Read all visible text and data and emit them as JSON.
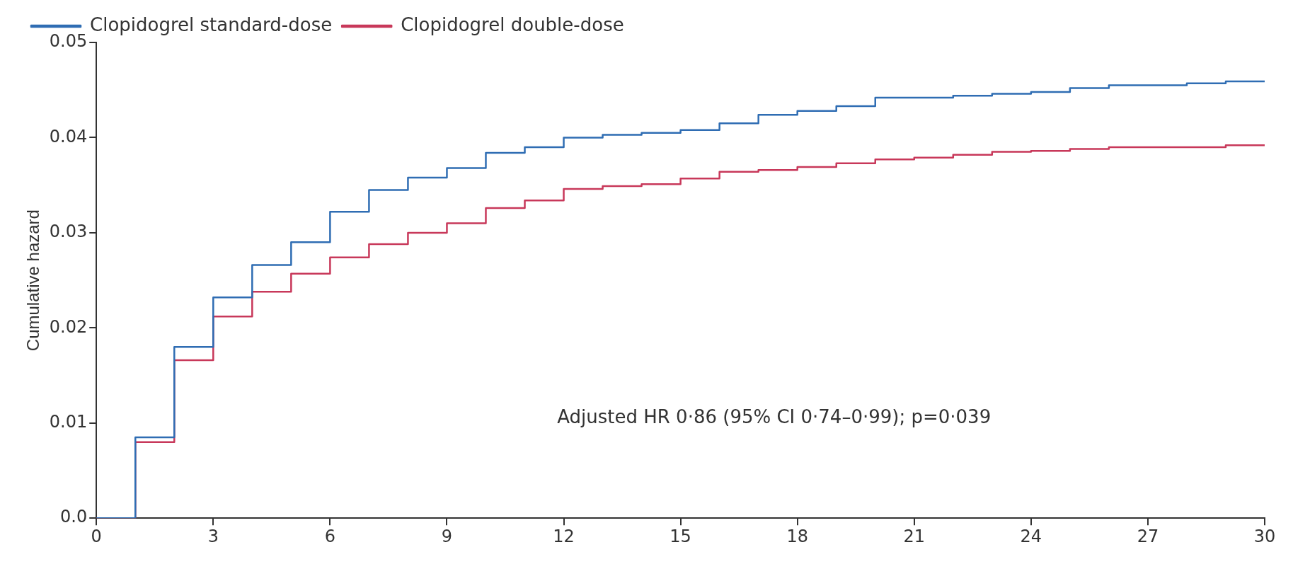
{
  "chart_data": {
    "type": "step",
    "ylabel": "Cumulative hazard",
    "legend": "top left",
    "grid": false,
    "x": [
      0,
      1,
      2,
      3,
      4,
      5,
      6,
      7,
      8,
      9,
      10,
      11,
      12,
      13,
      14,
      15,
      16,
      17,
      18,
      19,
      20,
      21,
      22,
      23,
      24,
      25,
      26,
      27,
      28,
      29,
      30
    ],
    "xlim": [
      0,
      30
    ],
    "xticks": [
      0,
      3,
      6,
      9,
      12,
      15,
      18,
      21,
      24,
      27,
      30
    ],
    "ylim": [
      0,
      0.05
    ],
    "yticks": [
      {
        "value": 0,
        "label": "0.0"
      },
      0.01,
      0.02,
      0.03,
      0.04,
      0.05
    ],
    "series": [
      {
        "name": "Clopidogrel standard-dose",
        "color": "#2f6db3",
        "values": [
          0,
          0.0085,
          0.018,
          0.0232,
          0.0266,
          0.029,
          0.0322,
          0.0345,
          0.0358,
          0.0368,
          0.0384,
          0.039,
          0.04,
          0.0403,
          0.0405,
          0.0408,
          0.0415,
          0.0424,
          0.0428,
          0.0433,
          0.0442,
          0.0442,
          0.0444,
          0.0446,
          0.0448,
          0.0452,
          0.0455,
          0.0455,
          0.0457,
          0.0459,
          0.0459
        ]
      },
      {
        "name": "Clopidogrel double-dose",
        "color": "#c8385a",
        "values": [
          0,
          0.008,
          0.0166,
          0.0212,
          0.0238,
          0.0257,
          0.0274,
          0.0288,
          0.03,
          0.031,
          0.0326,
          0.0334,
          0.0346,
          0.0349,
          0.0351,
          0.0357,
          0.0364,
          0.0366,
          0.0369,
          0.0373,
          0.0377,
          0.0379,
          0.0382,
          0.0385,
          0.0386,
          0.0388,
          0.039,
          0.039,
          0.039,
          0.0392,
          0.0392
        ]
      }
    ],
    "annotations": [
      "Adjusted HR 0·86 (95% CI 0·74–0·99); p=0·039"
    ]
  }
}
